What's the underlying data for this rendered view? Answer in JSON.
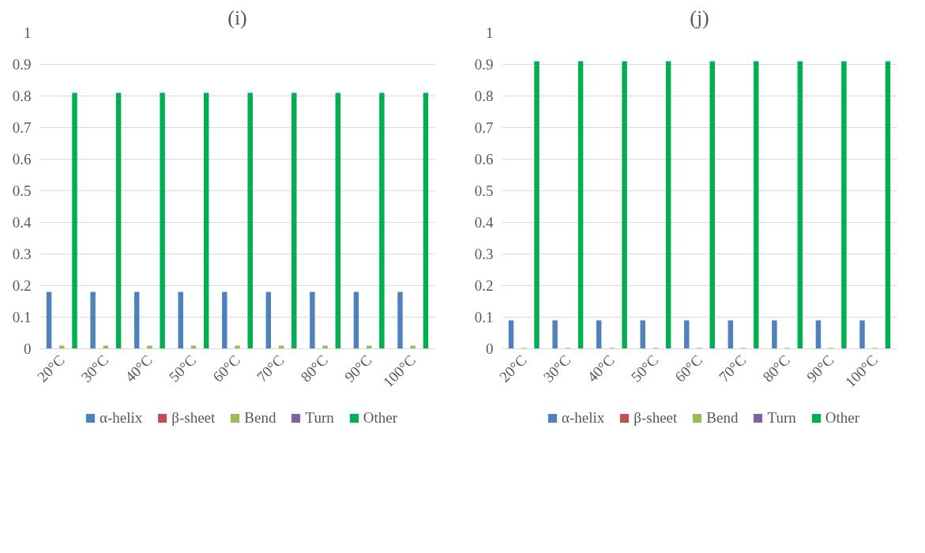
{
  "chart_data": [
    {
      "type": "bar",
      "title": "(i)",
      "categories": [
        "20°C",
        "30°C",
        "40°C",
        "50°C",
        "60°C",
        "70°C",
        "80°C",
        "90°C",
        "100°C"
      ],
      "ylim": [
        0,
        1
      ],
      "yticks": [
        0,
        0.1,
        0.2,
        0.3,
        0.4,
        0.5,
        0.6,
        0.7,
        0.8,
        0.9,
        1
      ],
      "grid": "y",
      "legend": "bottom",
      "series": [
        {
          "name": "α-helix",
          "color": "#4f81bd",
          "values": [
            0.18,
            0.18,
            0.18,
            0.18,
            0.18,
            0.18,
            0.18,
            0.18,
            0.18
          ]
        },
        {
          "name": "β-sheet",
          "color": "#c0504d",
          "values": [
            0,
            0,
            0,
            0,
            0,
            0,
            0,
            0,
            0
          ]
        },
        {
          "name": "Bend",
          "color": "#9bbb59",
          "values": [
            0.01,
            0.01,
            0.01,
            0.01,
            0.01,
            0.01,
            0.01,
            0.01,
            0.01
          ]
        },
        {
          "name": "Turn",
          "color": "#8064a2",
          "values": [
            0,
            0,
            0,
            0,
            0,
            0,
            0,
            0,
            0
          ]
        },
        {
          "name": "Other",
          "color": "#00b050",
          "values": [
            0.81,
            0.81,
            0.81,
            0.81,
            0.81,
            0.81,
            0.81,
            0.81,
            0.81
          ]
        }
      ]
    },
    {
      "type": "bar",
      "title": "(j)",
      "categories": [
        "20°C",
        "30°C",
        "40°C",
        "50°C",
        "60°C",
        "70°C",
        "80°C",
        "90°C",
        "100°C"
      ],
      "ylim": [
        0,
        1
      ],
      "yticks": [
        0,
        0.1,
        0.2,
        0.3,
        0.4,
        0.5,
        0.6,
        0.7,
        0.8,
        0.9,
        1
      ],
      "grid": "y",
      "legend": "bottom",
      "series": [
        {
          "name": "α-helix",
          "color": "#4f81bd",
          "values": [
            0.09,
            0.09,
            0.09,
            0.09,
            0.09,
            0.09,
            0.09,
            0.09,
            0.09
          ]
        },
        {
          "name": "β-sheet",
          "color": "#c0504d",
          "values": [
            0,
            0,
            0,
            0,
            0,
            0,
            0,
            0,
            0
          ]
        },
        {
          "name": "Bend",
          "color": "#9bbb59",
          "values": [
            0.003,
            0.003,
            0.003,
            0.003,
            0.003,
            0.003,
            0.003,
            0.003,
            0.003
          ]
        },
        {
          "name": "Turn",
          "color": "#8064a2",
          "values": [
            0,
            0,
            0,
            0,
            0,
            0,
            0,
            0,
            0
          ]
        },
        {
          "name": "Other",
          "color": "#00b050",
          "values": [
            0.91,
            0.91,
            0.91,
            0.91,
            0.91,
            0.91,
            0.91,
            0.91,
            0.91
          ]
        }
      ]
    }
  ]
}
